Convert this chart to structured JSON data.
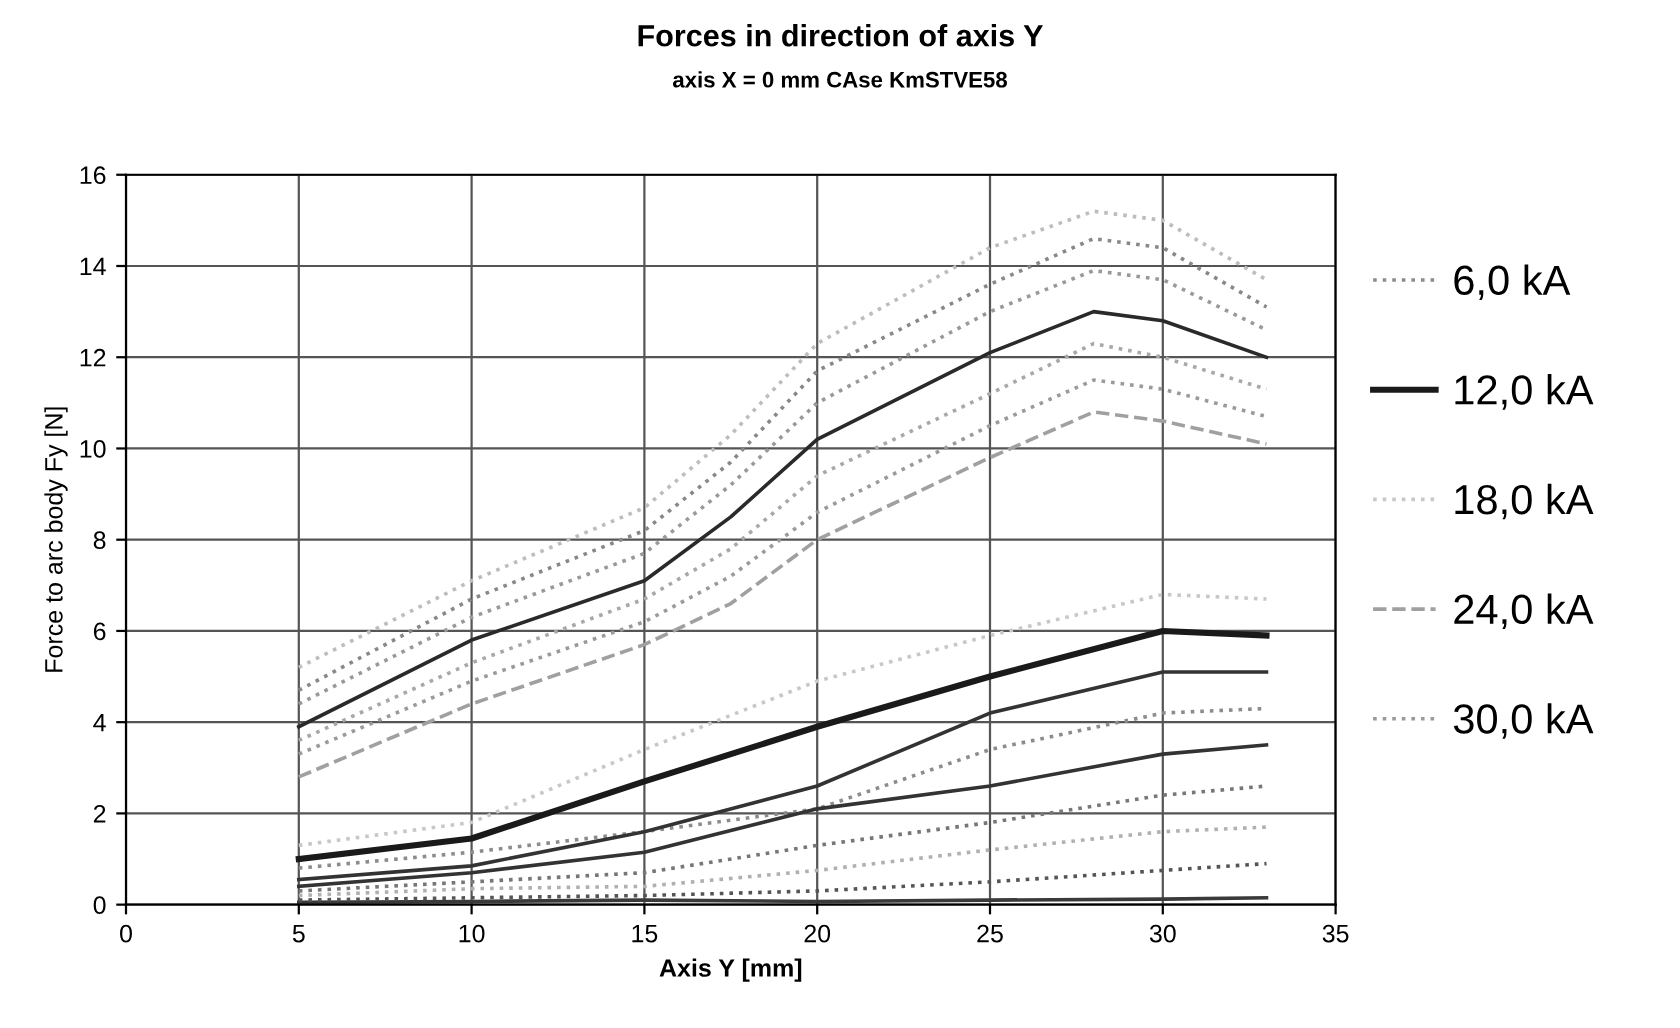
{
  "chart_data": {
    "type": "line",
    "title": "Forces in direction of axis Y",
    "subtitle": "axis X = 0 mm CAse KmSTVE58",
    "xlabel": "Axis Y [mm]",
    "ylabel": "Force to arc body Fy [N]",
    "xlim": [
      0,
      35
    ],
    "xticks": [
      0,
      5,
      10,
      15,
      20,
      25,
      30,
      35
    ],
    "ylim": [
      0,
      16
    ],
    "yticks": [
      0,
      2,
      4,
      6,
      8,
      10,
      12,
      14,
      16
    ],
    "grid": true,
    "legend": "right",
    "marker": "none",
    "series": [
      {
        "name": "6,0 kA",
        "color": "#8c8c8c",
        "line_style": "dotted",
        "x": [
          5,
          10,
          15,
          20,
          25,
          30,
          33
        ],
        "values": [
          0.8,
          1.15,
          1.6,
          2.1,
          3.4,
          4.2,
          4.3
        ]
      },
      {
        "name": "12,0 kA",
        "color": "#1a1a1a",
        "line_style": "solid",
        "x": [
          5,
          10,
          15,
          20,
          25,
          30,
          33
        ],
        "values": [
          1.0,
          1.45,
          2.7,
          3.9,
          5.0,
          6.0,
          5.9
        ]
      },
      {
        "name": "18,0 kA",
        "color": "#c8c8c8",
        "line_style": "dotted",
        "x": [
          5,
          10,
          15,
          20,
          25,
          30,
          33
        ],
        "values": [
          1.3,
          1.8,
          3.4,
          4.9,
          5.9,
          6.8,
          6.7
        ]
      },
      {
        "name": "24,0 kA",
        "color": "#a0a0a0",
        "line_style": "dashed",
        "x": [
          5,
          10,
          15,
          17.5,
          20,
          25,
          28,
          30,
          33
        ],
        "values": [
          2.8,
          4.4,
          5.7,
          6.6,
          8.0,
          9.8,
          10.8,
          10.6,
          10.1
        ]
      },
      {
        "name": "30,0 kA",
        "color": "#9a9a9a",
        "line_style": "dotted",
        "x": [
          5,
          10,
          15,
          17.5,
          20,
          25,
          28,
          30,
          33
        ],
        "values": [
          3.3,
          4.9,
          6.2,
          7.2,
          8.6,
          10.5,
          11.5,
          11.3,
          10.7
        ]
      },
      {
        "color": "#3a3a3a",
        "line_style": "solid",
        "x": [
          5,
          10,
          15,
          20,
          25,
          30,
          33
        ],
        "values": [
          0.05,
          0.07,
          0.1,
          0.07,
          0.1,
          0.12,
          0.15
        ]
      },
      {
        "color": "#555555",
        "line_style": "dotted",
        "x": [
          5,
          10,
          15,
          20,
          25,
          30,
          33
        ],
        "values": [
          0.1,
          0.15,
          0.2,
          0.3,
          0.5,
          0.75,
          0.9
        ]
      },
      {
        "color": "#b0b0b0",
        "line_style": "dotted",
        "x": [
          5,
          10,
          15,
          20,
          25,
          30,
          33
        ],
        "values": [
          0.2,
          0.35,
          0.4,
          0.75,
          1.2,
          1.6,
          1.7
        ]
      },
      {
        "color": "#777777",
        "line_style": "dotted",
        "x": [
          5,
          10,
          15,
          20,
          25,
          30,
          33
        ],
        "values": [
          0.3,
          0.5,
          0.7,
          1.3,
          1.8,
          2.4,
          2.6
        ]
      },
      {
        "color": "#333333",
        "line_style": "solid",
        "x": [
          5,
          10,
          15,
          20,
          25,
          30,
          33
        ],
        "values": [
          0.4,
          0.7,
          1.15,
          2.1,
          2.6,
          3.3,
          3.5
        ]
      },
      {
        "color": "#333333",
        "line_style": "solid",
        "x": [
          5,
          10,
          15,
          20,
          25,
          30,
          33
        ],
        "values": [
          0.55,
          0.85,
          1.6,
          2.6,
          4.2,
          5.1,
          5.1
        ]
      },
      {
        "color": "#a8a8a8",
        "line_style": "dotted",
        "x": [
          5,
          10,
          15,
          17.5,
          20,
          25,
          28,
          30,
          33
        ],
        "values": [
          3.6,
          5.3,
          6.7,
          7.8,
          9.4,
          11.2,
          12.3,
          12.0,
          11.3
        ]
      },
      {
        "color": "#2a2a2a",
        "line_style": "solid",
        "x": [
          5,
          10,
          15,
          17.5,
          20,
          25,
          28,
          30,
          33
        ],
        "values": [
          3.9,
          5.8,
          7.1,
          8.5,
          10.2,
          12.1,
          13.0,
          12.8,
          12.0
        ]
      },
      {
        "color": "#999999",
        "line_style": "dotted",
        "x": [
          5,
          10,
          15,
          17.5,
          20,
          25,
          28,
          30,
          33
        ],
        "values": [
          4.4,
          6.3,
          7.7,
          9.2,
          11.0,
          13.0,
          13.9,
          13.7,
          12.6
        ]
      },
      {
        "color": "#888888",
        "line_style": "dotted",
        "x": [
          5,
          10,
          15,
          17.5,
          20,
          25,
          28,
          30,
          33
        ],
        "values": [
          4.7,
          6.7,
          8.2,
          9.7,
          11.7,
          13.6,
          14.6,
          14.4,
          13.1
        ]
      },
      {
        "color": "#bdbdbd",
        "line_style": "dotted",
        "x": [
          5,
          10,
          15,
          17.5,
          20,
          25,
          28,
          30,
          33
        ],
        "values": [
          5.2,
          7.1,
          8.7,
          10.3,
          12.3,
          14.4,
          15.2,
          15.0,
          13.7
        ]
      }
    ]
  }
}
